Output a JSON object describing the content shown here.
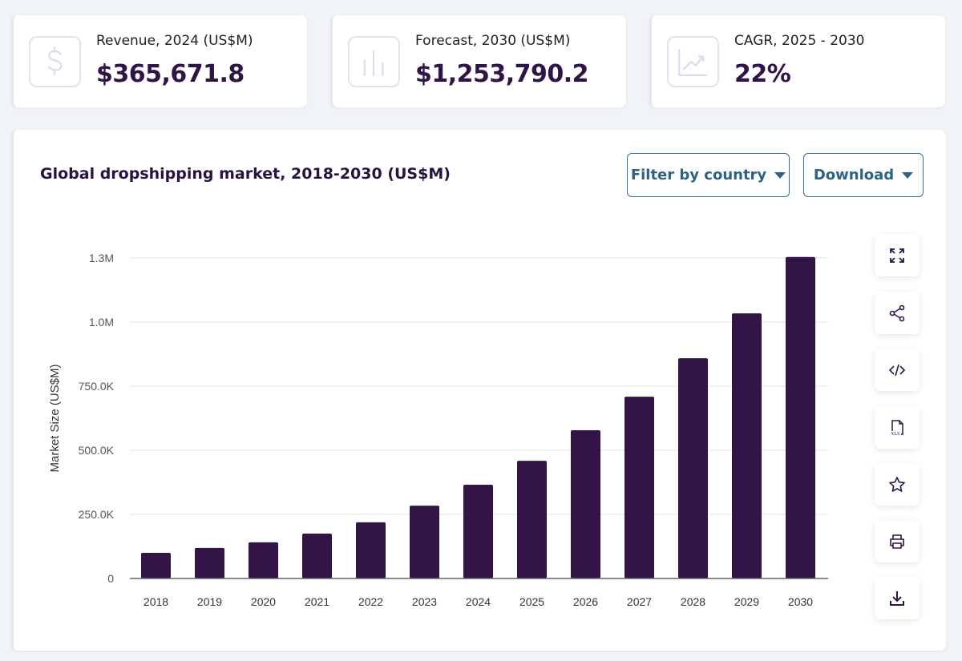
{
  "stats": [
    {
      "icon": "dollar-icon",
      "label": "Revenue, 2024 (US$M)",
      "value": "$365,671.8"
    },
    {
      "icon": "bar-chart-icon",
      "label": "Forecast, 2030 (US$M)",
      "value": "$1,253,790.2"
    },
    {
      "icon": "trend-up-icon",
      "label": "CAGR, 2025 - 2030",
      "value": "22%"
    }
  ],
  "panel": {
    "title": "Global dropshipping market, 2018-2030 (US$M)",
    "filter_label": "Filter by country",
    "download_label": "Download"
  },
  "side_actions": [
    "expand-icon",
    "share-icon",
    "embed-code-icon",
    "xls-file-icon",
    "star-icon",
    "print-icon",
    "download-icon"
  ],
  "colors": {
    "bar": "#321446",
    "accent": "#2d6284",
    "text_dark": "#2f1446"
  },
  "chart_data": {
    "type": "bar",
    "title": "Global dropshipping market, 2018-2030 (US$M)",
    "xlabel": "",
    "ylabel": "Market Size (US$M)",
    "categories": [
      "2018",
      "2019",
      "2020",
      "2021",
      "2022",
      "2023",
      "2024",
      "2025",
      "2026",
      "2027",
      "2028",
      "2029",
      "2030"
    ],
    "values": [
      100000,
      119000,
      141000,
      175000,
      219000,
      284000,
      365671.8,
      459000,
      578000,
      709000,
      859000,
      1034000,
      1253790.2
    ],
    "ylim": [
      0,
      1250000
    ],
    "yticks": [
      0,
      250000,
      500000,
      750000,
      1000000,
      1250000
    ],
    "ytick_labels": [
      "0",
      "250.0K",
      "500.0K",
      "750.0K",
      "1.0M",
      "1.3M"
    ],
    "grid": true,
    "legend": "none"
  }
}
